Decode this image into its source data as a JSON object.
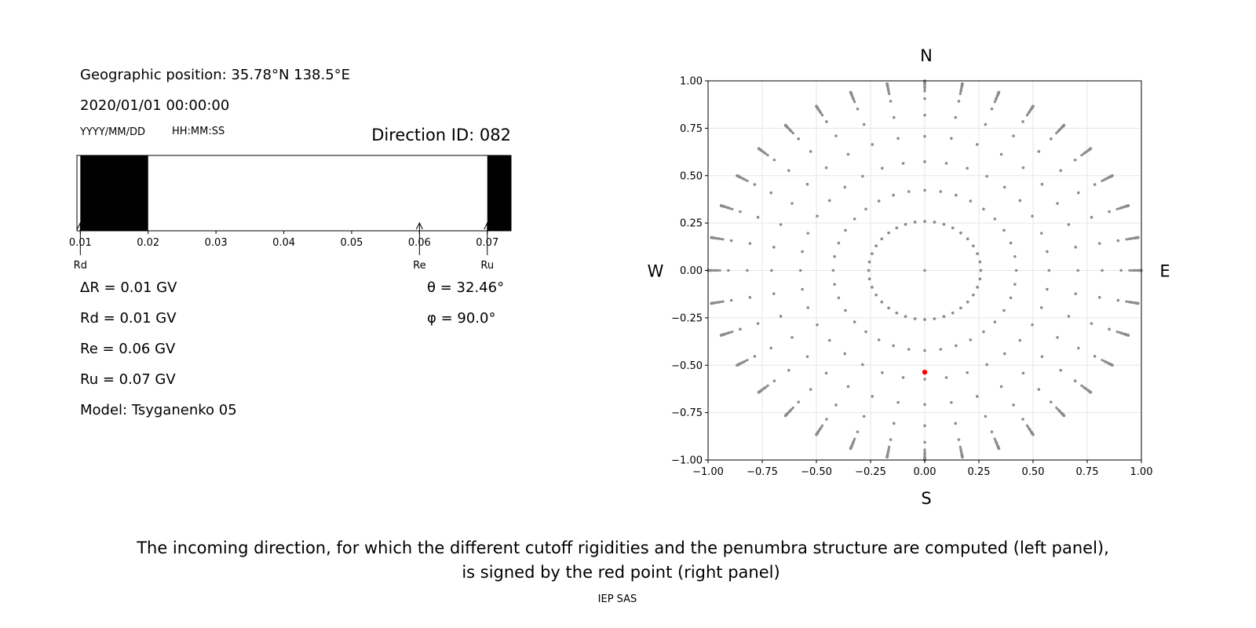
{
  "left_panel": {
    "geo_position": "Geographic position: 35.78°N 138.5°E",
    "datetime": "2020/01/01 00:00:00",
    "date_format": "YYYY/MM/DD",
    "time_format": "HH:MM:SS",
    "direction_id": "Direction ID: 082",
    "params": {
      "delta_r": "ΔR = 0.01 GV",
      "rd": "Rd = 0.01 GV",
      "re": "Re = 0.06 GV",
      "ru": "Ru = 0.07 GV",
      "model": "Model: Tsyganenko 05",
      "theta": "θ = 32.46°",
      "phi": "φ = 90.0°"
    }
  },
  "chart_data": [
    {
      "type": "bar",
      "name": "penumbra-structure",
      "x_range": [
        0.0095,
        0.0735
      ],
      "tick_labels": [
        "0.01",
        "0.02",
        "0.03",
        "0.04",
        "0.05",
        "0.06",
        "0.07"
      ],
      "ticks": [
        0.01,
        0.02,
        0.03,
        0.04,
        0.05,
        0.06,
        0.07
      ],
      "forbidden_bands": [
        [
          0.01,
          0.02
        ],
        [
          0.07,
          0.0735
        ]
      ],
      "markers": [
        {
          "label": "Rd",
          "value": 0.01
        },
        {
          "label": "Re",
          "value": 0.06
        },
        {
          "label": "Ru",
          "value": 0.07
        }
      ],
      "band_color": "#000000"
    },
    {
      "type": "scatter",
      "name": "direction-grid",
      "xlim": [
        -1.0,
        1.0
      ],
      "ylim": [
        -1.0,
        1.0
      ],
      "x_tick_labels": [
        "−1.00",
        "−0.75",
        "−0.50",
        "−0.25",
        "0.00",
        "0.25",
        "0.50",
        "0.75",
        "1.00"
      ],
      "y_tick_labels": [
        "1.00",
        "0.75",
        "0.50",
        "0.25",
        "0.00",
        "−0.25",
        "−0.50",
        "−0.75",
        "−1.00"
      ],
      "ticks": [
        -1.0,
        -0.75,
        -0.5,
        -0.25,
        0.0,
        0.25,
        0.5,
        0.75,
        1.0
      ],
      "grid": true,
      "compass": {
        "north": "N",
        "south": "S",
        "east": "E",
        "west": "W"
      },
      "grid_point_color": "#8c8c8c",
      "grid_zeniths_deg": [
        0,
        15,
        25,
        35,
        45,
        55,
        65,
        75,
        80,
        82,
        84,
        86,
        88,
        90
      ],
      "grid_azimuths_deg": [
        0,
        10,
        20,
        30,
        40,
        50,
        60,
        70,
        80,
        90,
        100,
        110,
        120,
        130,
        140,
        150,
        160,
        170,
        180,
        190,
        200,
        210,
        220,
        230,
        240,
        250,
        260,
        270,
        280,
        290,
        300,
        310,
        320,
        330,
        340,
        350
      ],
      "highlight": {
        "theta_deg": 32.46,
        "phi_deg": 90.0,
        "x": 0.0,
        "y": -0.5367,
        "color": "#ff0000"
      }
    }
  ],
  "caption": {
    "line1": "The incoming direction, for which the different cutoff rigidities and the penumbra structure are computed (left panel),",
    "line2": "is signed by the red point (right panel)"
  },
  "footer": "IEP SAS"
}
